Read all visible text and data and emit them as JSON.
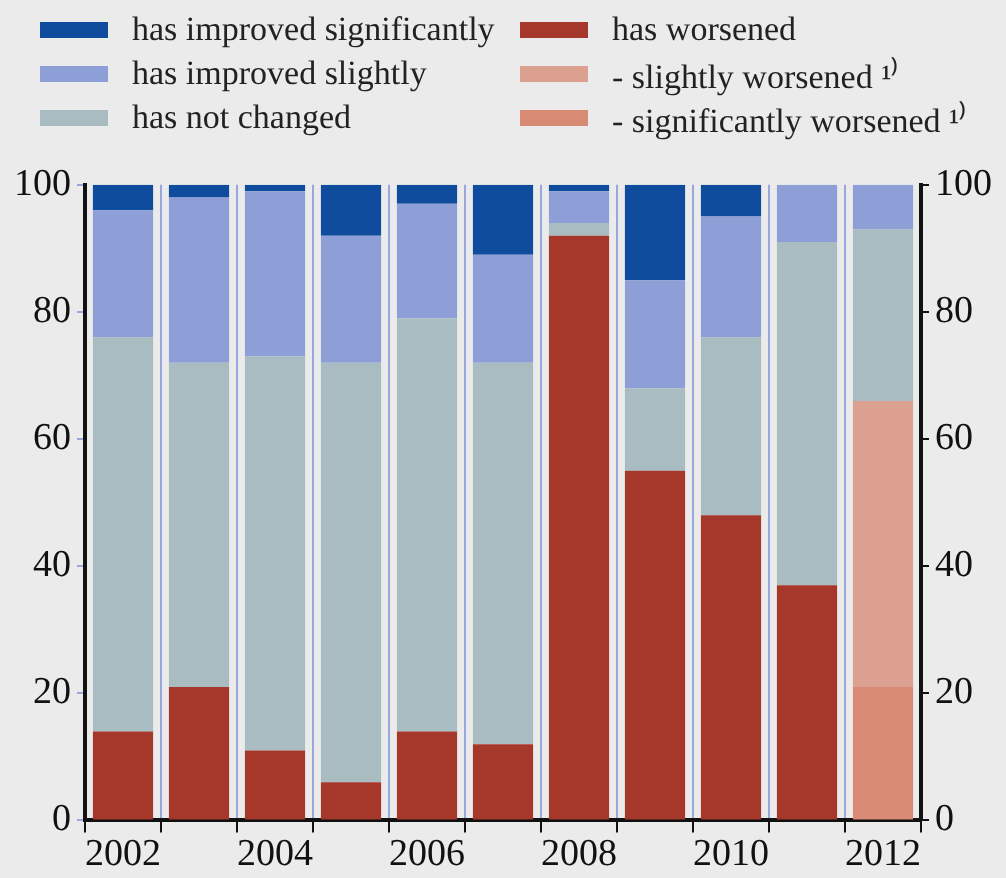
{
  "chart_data": {
    "type": "bar",
    "stacked": true,
    "categories": [
      "2002",
      null,
      "2004",
      null,
      "2006",
      null,
      "2008",
      null,
      "2010",
      null,
      "2012"
    ],
    "series": [
      {
        "name": "has worsened",
        "color": "#a6372b",
        "values": [
          14,
          21,
          11,
          6,
          14,
          12,
          92,
          55,
          48,
          37,
          null
        ]
      },
      {
        "name": "- significantly worsened ¹⁾",
        "color": "#d88a74",
        "values": [
          null,
          null,
          null,
          null,
          null,
          null,
          null,
          null,
          null,
          null,
          21
        ]
      },
      {
        "name": "- slightly worsened ¹⁾",
        "color": "#dba090",
        "values": [
          null,
          null,
          null,
          null,
          null,
          null,
          null,
          null,
          null,
          null,
          45
        ]
      },
      {
        "name": "has not changed",
        "color": "#a9bcc2",
        "values": [
          62,
          51,
          62,
          66,
          65,
          60,
          2,
          13,
          28,
          54,
          27
        ]
      },
      {
        "name": "has improved slightly",
        "color": "#8d9fd6",
        "values": [
          20,
          26,
          26,
          20,
          18,
          17,
          5,
          17,
          19,
          9,
          7
        ]
      },
      {
        "name": "has improved significantly",
        "color": "#0f4c9e",
        "values": [
          4,
          2,
          1,
          8,
          3,
          11,
          1,
          15,
          5,
          0,
          0
        ]
      }
    ],
    "ylim": [
      0,
      100
    ],
    "yticks": [
      0,
      20,
      40,
      60,
      80,
      100
    ],
    "y2lim": [
      0,
      100
    ],
    "y2ticks": [
      0,
      20,
      40,
      60,
      80,
      100
    ],
    "grid": "x",
    "legend": "top"
  }
}
